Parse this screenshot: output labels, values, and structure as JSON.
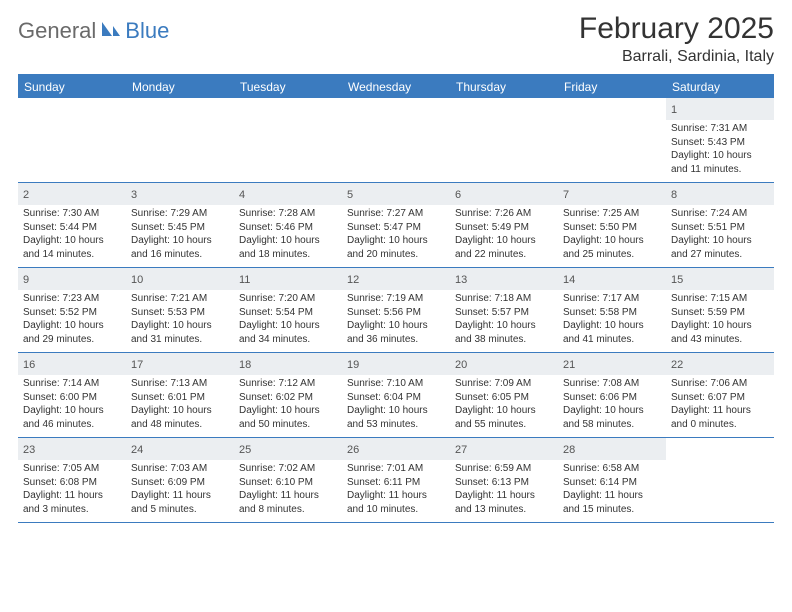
{
  "logo": {
    "part1": "General",
    "part2": "Blue"
  },
  "title": "February 2025",
  "location": "Barrali, Sardinia, Italy",
  "colors": {
    "accent": "#3b7bbf",
    "headerText": "#ffffff",
    "dayNumBg": "#ebeef1",
    "bodyText": "#333333",
    "logoGray": "#6a6a6a"
  },
  "dayNames": [
    "Sunday",
    "Monday",
    "Tuesday",
    "Wednesday",
    "Thursday",
    "Friday",
    "Saturday"
  ],
  "weeks": [
    [
      null,
      null,
      null,
      null,
      null,
      null,
      {
        "n": "1",
        "sr": "7:31 AM",
        "ss": "5:43 PM",
        "dl": "10 hours and 11 minutes."
      }
    ],
    [
      {
        "n": "2",
        "sr": "7:30 AM",
        "ss": "5:44 PM",
        "dl": "10 hours and 14 minutes."
      },
      {
        "n": "3",
        "sr": "7:29 AM",
        "ss": "5:45 PM",
        "dl": "10 hours and 16 minutes."
      },
      {
        "n": "4",
        "sr": "7:28 AM",
        "ss": "5:46 PM",
        "dl": "10 hours and 18 minutes."
      },
      {
        "n": "5",
        "sr": "7:27 AM",
        "ss": "5:47 PM",
        "dl": "10 hours and 20 minutes."
      },
      {
        "n": "6",
        "sr": "7:26 AM",
        "ss": "5:49 PM",
        "dl": "10 hours and 22 minutes."
      },
      {
        "n": "7",
        "sr": "7:25 AM",
        "ss": "5:50 PM",
        "dl": "10 hours and 25 minutes."
      },
      {
        "n": "8",
        "sr": "7:24 AM",
        "ss": "5:51 PM",
        "dl": "10 hours and 27 minutes."
      }
    ],
    [
      {
        "n": "9",
        "sr": "7:23 AM",
        "ss": "5:52 PM",
        "dl": "10 hours and 29 minutes."
      },
      {
        "n": "10",
        "sr": "7:21 AM",
        "ss": "5:53 PM",
        "dl": "10 hours and 31 minutes."
      },
      {
        "n": "11",
        "sr": "7:20 AM",
        "ss": "5:54 PM",
        "dl": "10 hours and 34 minutes."
      },
      {
        "n": "12",
        "sr": "7:19 AM",
        "ss": "5:56 PM",
        "dl": "10 hours and 36 minutes."
      },
      {
        "n": "13",
        "sr": "7:18 AM",
        "ss": "5:57 PM",
        "dl": "10 hours and 38 minutes."
      },
      {
        "n": "14",
        "sr": "7:17 AM",
        "ss": "5:58 PM",
        "dl": "10 hours and 41 minutes."
      },
      {
        "n": "15",
        "sr": "7:15 AM",
        "ss": "5:59 PM",
        "dl": "10 hours and 43 minutes."
      }
    ],
    [
      {
        "n": "16",
        "sr": "7:14 AM",
        "ss": "6:00 PM",
        "dl": "10 hours and 46 minutes."
      },
      {
        "n": "17",
        "sr": "7:13 AM",
        "ss": "6:01 PM",
        "dl": "10 hours and 48 minutes."
      },
      {
        "n": "18",
        "sr": "7:12 AM",
        "ss": "6:02 PM",
        "dl": "10 hours and 50 minutes."
      },
      {
        "n": "19",
        "sr": "7:10 AM",
        "ss": "6:04 PM",
        "dl": "10 hours and 53 minutes."
      },
      {
        "n": "20",
        "sr": "7:09 AM",
        "ss": "6:05 PM",
        "dl": "10 hours and 55 minutes."
      },
      {
        "n": "21",
        "sr": "7:08 AM",
        "ss": "6:06 PM",
        "dl": "10 hours and 58 minutes."
      },
      {
        "n": "22",
        "sr": "7:06 AM",
        "ss": "6:07 PM",
        "dl": "11 hours and 0 minutes."
      }
    ],
    [
      {
        "n": "23",
        "sr": "7:05 AM",
        "ss": "6:08 PM",
        "dl": "11 hours and 3 minutes."
      },
      {
        "n": "24",
        "sr": "7:03 AM",
        "ss": "6:09 PM",
        "dl": "11 hours and 5 minutes."
      },
      {
        "n": "25",
        "sr": "7:02 AM",
        "ss": "6:10 PM",
        "dl": "11 hours and 8 minutes."
      },
      {
        "n": "26",
        "sr": "7:01 AM",
        "ss": "6:11 PM",
        "dl": "11 hours and 10 minutes."
      },
      {
        "n": "27",
        "sr": "6:59 AM",
        "ss": "6:13 PM",
        "dl": "11 hours and 13 minutes."
      },
      {
        "n": "28",
        "sr": "6:58 AM",
        "ss": "6:14 PM",
        "dl": "11 hours and 15 minutes."
      },
      null
    ]
  ],
  "labels": {
    "sunrise": "Sunrise:",
    "sunset": "Sunset:",
    "daylight": "Daylight:"
  }
}
